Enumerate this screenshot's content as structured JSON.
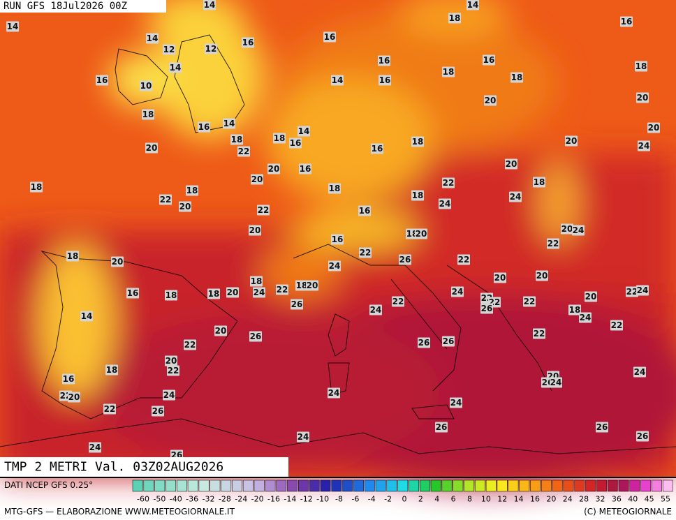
{
  "header": {
    "run": "RUN GFS 18Jul2026 00Z",
    "title": "TMP 2 METRI Val. 03Z02AUG2026"
  },
  "map": {
    "labels": [
      14,
      14,
      14,
      18,
      16,
      14,
      16,
      16,
      12,
      12,
      16,
      16,
      14,
      18,
      18,
      16,
      14,
      16,
      18,
      10,
      20,
      20,
      18,
      16,
      14,
      14,
      20,
      18,
      18,
      16,
      18,
      16,
      20,
      24,
      20,
      22,
      20,
      16,
      20,
      18,
      20,
      18,
      18,
      22,
      18,
      22,
      20,
      18,
      24,
      24,
      22,
      16,
      20,
      20,
      24,
      18,
      20,
      22,
      16,
      18,
      20,
      22,
      26,
      22,
      24,
      18,
      20,
      20,
      22,
      18,
      20,
      20,
      24,
      18,
      16,
      18,
      24,
      22,
      24,
      22,
      22,
      22,
      20,
      26,
      24,
      22,
      26,
      18,
      24,
      14,
      22,
      20,
      26,
      22,
      22,
      26,
      26,
      20,
      22,
      18,
      24,
      16,
      20,
      26,
      24,
      22,
      20,
      24,
      24,
      24,
      22,
      26,
      26,
      26,
      26,
      24,
      24,
      26
    ]
  },
  "footer": {
    "source": "DATI NCEP GFS 0.25°",
    "credit": "MTG-GFS — ELABORAZIONE WWW.METEOGIORNALE.IT",
    "copyright": "(C) METEOGIORNALE"
  },
  "colorbar": {
    "ticks": [
      -60,
      -50,
      -40,
      -36,
      -32,
      -28,
      -24,
      -20,
      -16,
      -14,
      -12,
      -10,
      -8,
      -6,
      -4,
      -2,
      0,
      2,
      4,
      6,
      8,
      10,
      12,
      14,
      16,
      20,
      24,
      28,
      32,
      36,
      40,
      45,
      55
    ]
  }
}
